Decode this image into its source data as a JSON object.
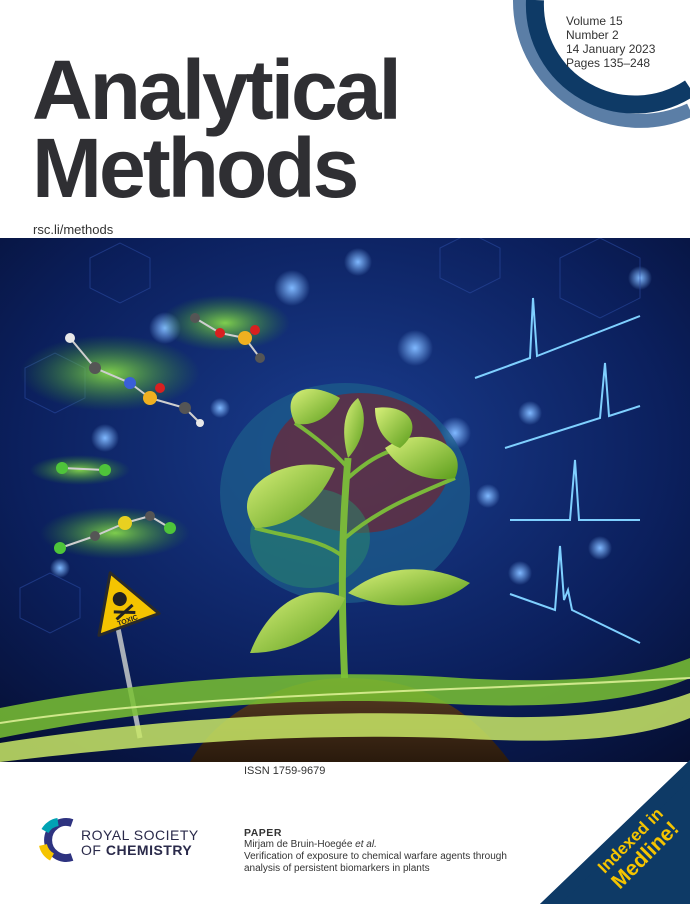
{
  "journal": {
    "title_line1": "Analytical",
    "title_line2": "Methods",
    "url": "rsc.li/methods"
  },
  "issue": {
    "volume": "Volume 15",
    "number": "Number 2",
    "date": "14 January 2023",
    "pages": "Pages 135–248"
  },
  "issn": "ISSN 1759-9679",
  "publisher": {
    "line1": "ROYAL SOCIETY",
    "line2_prefix": "OF ",
    "line2_bold": "CHEMISTRY"
  },
  "paper": {
    "heading": "PAPER",
    "authors": "Mirjam de Bruin-Hoegée",
    "authors_suffix": " et al.",
    "title_line1": "Verification of exposure to chemical warfare agents through",
    "title_line2": "analysis of persistent biomarkers in plants"
  },
  "banner": {
    "line1": "Indexed in",
    "line2": "Medline!"
  },
  "sign_text": "TOXIC",
  "colors": {
    "navy": "#0e3a66",
    "steel": "#5b7ea6",
    "accent_yellow": "#f5c400",
    "accent_teal": "#00a3b4"
  }
}
